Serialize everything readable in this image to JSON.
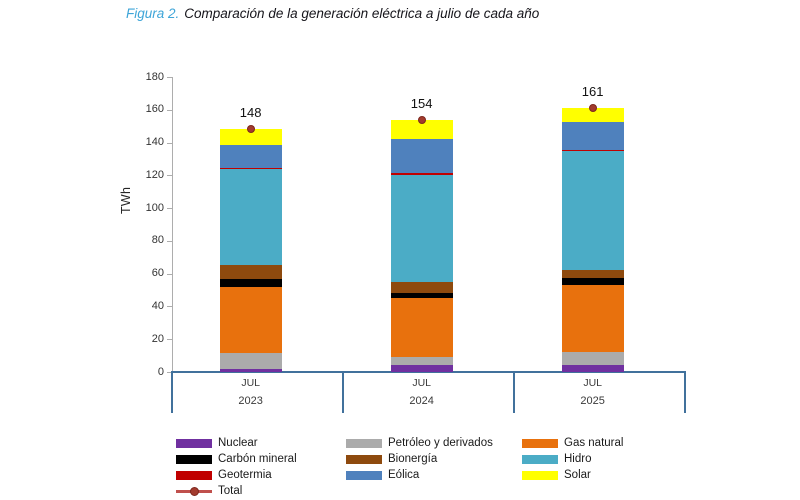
{
  "figure": {
    "title_prefix": "Figura 2.",
    "title_text": "Comparación de la generación eléctrica a julio de cada año"
  },
  "chart_data": {
    "type": "bar",
    "stacked": true,
    "title": "Comparación de la generación eléctrica a julio de cada año",
    "ylabel": "TWh",
    "xlabel": "",
    "ylim": [
      0,
      180
    ],
    "ytick_step": 20,
    "grid": false,
    "legend_position": "bottom",
    "categories": [
      {
        "month": "JUL",
        "year": "2023"
      },
      {
        "month": "JUL",
        "year": "2024"
      },
      {
        "month": "JUL",
        "year": "2025"
      }
    ],
    "series": [
      {
        "name": "Nuclear",
        "color": "#7030A0",
        "values": [
          2,
          4.5,
          4
        ]
      },
      {
        "name": "Petróleo y derivados",
        "color": "#ABABAB",
        "values": [
          9.5,
          4.5,
          8
        ]
      },
      {
        "name": "Gas natural",
        "color": "#E8710D",
        "values": [
          40.5,
          36,
          41
        ]
      },
      {
        "name": "Carbón mineral",
        "color": "#000000",
        "values": [
          4.5,
          3.5,
          4.5
        ]
      },
      {
        "name": "Bionergía",
        "color": "#8E4A0E",
        "values": [
          8.5,
          6.5,
          5
        ]
      },
      {
        "name": "Hidro",
        "color": "#4BACC6",
        "values": [
          59,
          65.5,
          72.5
        ]
      },
      {
        "name": "Geotermia",
        "color": "#C00000",
        "values": [
          0.5,
          1,
          0.5
        ]
      },
      {
        "name": "Eólica",
        "color": "#4F81BD",
        "values": [
          14,
          20.5,
          17
        ]
      },
      {
        "name": "Solar",
        "color": "#FFFF00",
        "values": [
          9.5,
          12,
          8.5
        ]
      }
    ],
    "total_series": {
      "name": "Total",
      "marker": "line-dot",
      "line_color": "#C0504D",
      "dot_fill": "#A23B2E",
      "dot_border": "#7D271E",
      "values": [
        148,
        154,
        161
      ]
    }
  },
  "colors": {
    "axis_frame": "#41719C",
    "yaxis_line": "#ADADAD",
    "title_prefix": "#3EA5D8",
    "title_text": "#16151B"
  }
}
